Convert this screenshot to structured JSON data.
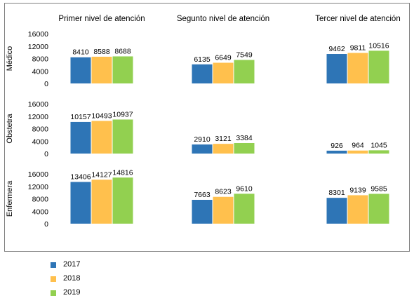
{
  "chart_data": {
    "type": "bar",
    "column_titles": [
      "Primer nivel de atención",
      "Segunto nivel de atención",
      "Tercer nivel de atención"
    ],
    "row_labels": [
      "Médico",
      "Obstetra",
      "Enfermera"
    ],
    "series": [
      {
        "name": "2017",
        "color": "#2e75b6"
      },
      {
        "name": "2018",
        "color": "#ffc04d"
      },
      {
        "name": "2019",
        "color": "#92d050"
      }
    ],
    "ylim": [
      0,
      16000
    ],
    "yticks": [
      "0",
      "4000",
      "8000",
      "12000",
      "16000"
    ],
    "values": [
      [
        [
          8410,
          8588,
          8688
        ],
        [
          6135,
          6649,
          7549
        ],
        [
          9462,
          9811,
          10516
        ]
      ],
      [
        [
          10157,
          10493,
          10937
        ],
        [
          2910,
          3121,
          3384
        ],
        [
          926,
          964,
          1045
        ]
      ],
      [
        [
          13406,
          14127,
          14816
        ],
        [
          7663,
          8623,
          9610
        ],
        [
          8301,
          9139,
          9585
        ]
      ]
    ],
    "grid": false,
    "legend_position": "bottom-left"
  },
  "legend": {
    "items": [
      {
        "label": "2017",
        "color": "#2e75b6"
      },
      {
        "label": "2018",
        "color": "#ffc04d"
      },
      {
        "label": "2019",
        "color": "#92d050"
      }
    ]
  }
}
